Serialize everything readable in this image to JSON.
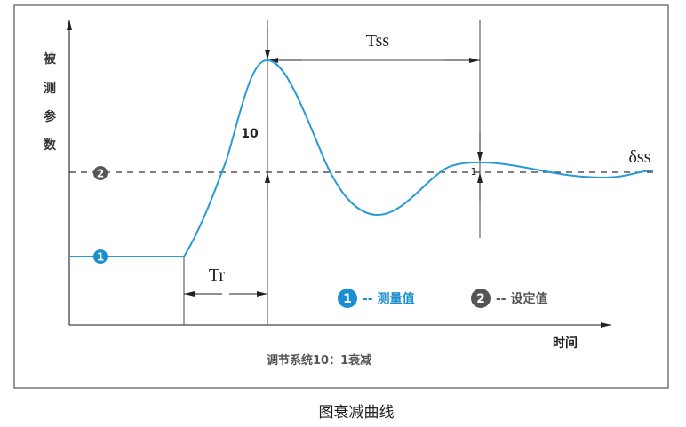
{
  "diagram": {
    "y_axis_label": [
      "被",
      "测",
      "参",
      "数"
    ],
    "x_axis_label": "时间",
    "subtitle": "调节系统10：1衰减",
    "caption": "图衰减曲线",
    "labels": {
      "tss": "Tss",
      "tr": "Tr",
      "peak_amplitude": "10",
      "second_amplitude": "1",
      "delta_ss": "δss",
      "marker_measured": "1",
      "marker_setpoint": "2"
    },
    "legend": [
      {
        "marker": "1",
        "text": "-- 测量值",
        "color": "#1a8fd0"
      },
      {
        "marker": "2",
        "text": "-- 设定值",
        "color": "#555555"
      }
    ],
    "colors": {
      "curve": "#2a9ad6",
      "axis": "#333333",
      "setpoint_marker": "#555555"
    }
  }
}
